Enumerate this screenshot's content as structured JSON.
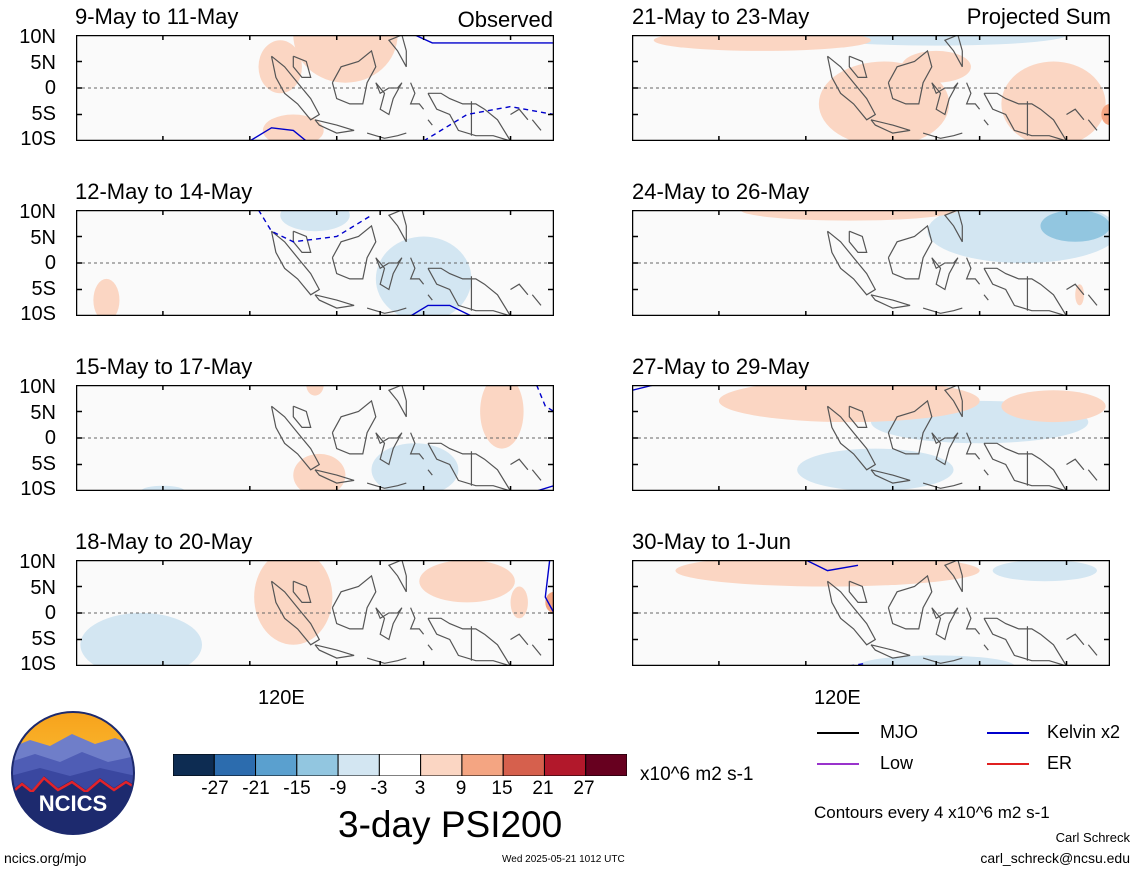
{
  "column_labels": {
    "left": "Observed",
    "right": "Projected Sum"
  },
  "lat_labels": [
    "10N",
    "5N",
    "0",
    "5S",
    "10S"
  ],
  "lon_label": "120E",
  "colorbar": {
    "ticks": [
      "-27",
      "-21",
      "-15",
      "-9",
      "-3",
      "3",
      "9",
      "15",
      "21",
      "27"
    ],
    "colors": [
      "#0d2c52",
      "#2c6cae",
      "#5aa0cf",
      "#92c6e0",
      "#d3e6f2",
      "#ffffff",
      "#fbd6c3",
      "#f4a582",
      "#d6604d",
      "#b2182b",
      "#67001f"
    ],
    "units": "x10^6 m2 s-1"
  },
  "big_title": "3-day PSI200",
  "legend": {
    "items": [
      {
        "label": "MJO",
        "color": "#000000"
      },
      {
        "label": "Kelvin x2",
        "color": "#0000cc"
      },
      {
        "label": "Low",
        "color": "#9933cc"
      },
      {
        "label": "ER",
        "color": "#e02020"
      }
    ],
    "contour_note": "Contours every 4 x10^6 m2 s-1"
  },
  "logo": {
    "text": "NCICS"
  },
  "footer": {
    "url": "ncics.org/mjo",
    "timestamp": "Wed 2025-05-21 1012 UTC",
    "author": "Carl Schreck",
    "email": "carl_schreck@ncsu.edu"
  },
  "chart_data": {
    "type": "heatmap",
    "variable": "3-day PSI200",
    "units": "x10^6 m2 s-1",
    "lat_range": [
      "10S",
      "10N"
    ],
    "panels": [
      {
        "column": "Observed",
        "period": "9-May to 11-May",
        "positive": [
          [
            112,
            10,
            12,
            9
          ],
          [
            97,
            4,
            5,
            5
          ],
          [
            100,
            -8,
            7,
            3
          ]
        ],
        "negative": [],
        "contours": [
          {
            "wave": "Kelvin x2",
            "style": "solid"
          },
          {
            "wave": "Kelvin x2",
            "style": "dashed"
          }
        ]
      },
      {
        "column": "Observed",
        "period": "12-May to 14-May",
        "positive": [
          [
            57,
            -7,
            3,
            4
          ]
        ],
        "negative": [
          [
            105,
            9,
            8,
            3
          ],
          [
            130,
            -3,
            11,
            8
          ]
        ],
        "contours": [
          {
            "wave": "Kelvin x2",
            "style": "dashed"
          },
          {
            "wave": "Kelvin x2",
            "style": "solid"
          }
        ]
      },
      {
        "column": "Observed",
        "period": "15-May to 17-May",
        "positive": [
          [
            148,
            5,
            5,
            7
          ],
          [
            106,
            -7,
            6,
            4
          ],
          [
            105,
            10,
            2,
            2
          ]
        ],
        "negative": [
          [
            128,
            -6,
            10,
            5
          ],
          [
            70,
            -10,
            5,
            1
          ]
        ],
        "contours": [
          {
            "wave": "Kelvin x2",
            "style": "dashed"
          },
          {
            "wave": "Kelvin x2",
            "style": "solid"
          }
        ]
      },
      {
        "column": "Observed",
        "period": "18-May to 20-May",
        "positive": [
          [
            100,
            3,
            9,
            9
          ],
          [
            140,
            6,
            11,
            4
          ],
          [
            152,
            2,
            2,
            3
          ]
        ],
        "negative": [
          [
            65,
            -6,
            14,
            6
          ]
        ],
        "contours": [
          {
            "wave": "Kelvin x2",
            "style": "solid"
          }
        ]
      },
      {
        "column": "Projected Sum",
        "period": "21-May to 23-May",
        "positive": [
          [
            80,
            9,
            25,
            2
          ],
          [
            120,
            4,
            8,
            3
          ],
          [
            108,
            -3,
            15,
            8
          ],
          [
            147,
            -3,
            12,
            8
          ]
        ],
        "negative": [
          [
            120,
            10,
            30,
            2
          ]
        ],
        "contours": []
      },
      {
        "column": "Projected Sum",
        "period": "24-May to 26-May",
        "positive": [
          [
            100,
            10,
            25,
            2
          ],
          [
            153,
            -6,
            1,
            2
          ]
        ],
        "negative": [
          [
            140,
            6,
            22,
            6
          ],
          [
            148,
            6,
            8,
            3
          ]
        ],
        "contours": []
      },
      {
        "column": "Projected Sum",
        "period": "27-May to 29-May",
        "positive": [
          [
            100,
            7,
            30,
            4
          ],
          [
            147,
            6,
            12,
            3
          ]
        ],
        "negative": [
          [
            130,
            3,
            25,
            4
          ],
          [
            106,
            -6,
            18,
            4
          ]
        ],
        "contours": [
          {
            "wave": "Kelvin x2",
            "style": "solid"
          }
        ]
      },
      {
        "column": "Projected Sum",
        "period": "30-May to 1-Jun",
        "positive": [
          [
            95,
            8,
            35,
            3
          ]
        ],
        "negative": [
          [
            145,
            8,
            12,
            2
          ],
          [
            120,
            -10,
            18,
            2
          ]
        ],
        "contours": [
          {
            "wave": "Kelvin x2",
            "style": "solid"
          },
          {
            "wave": "Kelvin x2",
            "style": "dashed"
          }
        ]
      }
    ]
  }
}
